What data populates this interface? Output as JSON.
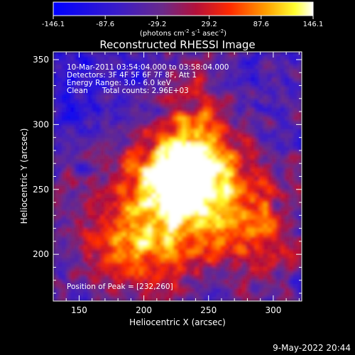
{
  "colorbar": {
    "ticks": [
      "-146.1",
      "-87.6",
      "-29.2",
      "29.2",
      "87.6",
      "146.1"
    ],
    "unit_main": "(photons cm",
    "unit_exp1": "-2",
    "unit_s": " s",
    "unit_exp2": "-1",
    "unit_asec": " asec",
    "unit_exp3": "-2",
    "unit_close": ")"
  },
  "chart_data": {
    "type": "heatmap",
    "title": "Reconstructed RHESSI Image",
    "xlabel": "Heliocentric X (arcsec)",
    "ylabel": "Heliocentric Y (arcsec)",
    "xlim": [
      130,
      322
    ],
    "ylim": [
      164,
      356
    ],
    "x_ticks": [
      "150",
      "200",
      "250",
      "300"
    ],
    "y_ticks": [
      "200",
      "250",
      "300",
      "350"
    ],
    "x_tick_values": [
      150,
      200,
      250,
      300
    ],
    "y_tick_values": [
      200,
      250,
      300,
      350
    ],
    "value_range": [
      -146.1,
      146.1
    ],
    "colormap": "rhessi-blue-purple-red-yellow-white",
    "peak": [
      232,
      260
    ],
    "annotations": [
      "10-Mar-2011 03:54:04.000 to 03:58:04.000",
      "Detectors: 3F 4F 5F 6F 7F 8F, Att 1",
      "Energy Range: 3.0 - 6.0 keV",
      "Clean      Total counts: 2.96E+03"
    ],
    "peak_label": "Position of Peak = [232,260]"
  },
  "footer": {
    "timestamp": "9-May-2022 20:44"
  }
}
